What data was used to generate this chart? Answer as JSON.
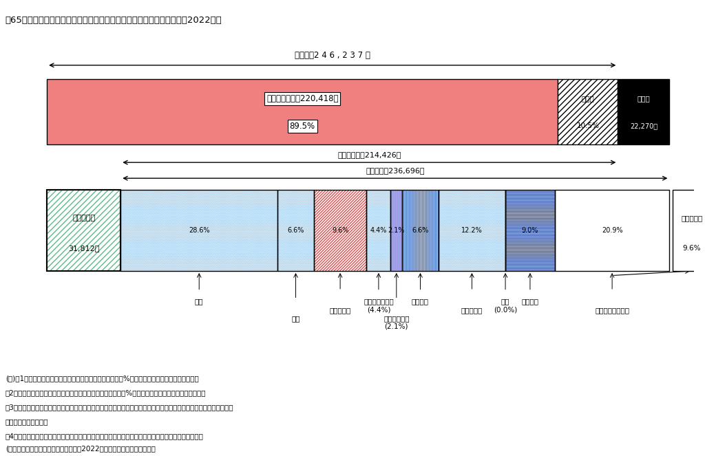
{
  "title": "、65歳以上の夫婦のみの無職世帯（夫婦高齢者無職世帯）の家計収支　2022年」",
  "label_jisshu": "実収入　2 4 6 , 2 3 7 円",
  "label_shakai": "社会保障給付　220,418円",
  "label_shakai_pct": "89.5%",
  "label_sonota": "その他",
  "label_sonota_pct": "10.5%",
  "label_fusoku": "不足分",
  "label_fusoku_val": "22,270円",
  "label_kasho": "可処分所得　214,426円",
  "label_shohi": "消費支出　236,696円",
  "label_hishohi": "非消費支出",
  "label_hishohi_val": "31,812円",
  "label_uchi": "うち交際費",
  "label_uchi_pct": "9.6%",
  "categories": [
    "食料",
    "住居",
    "光熱・水道",
    "家具・家事用品",
    "被服及び履物",
    "保健医療",
    "交通・通信",
    "教育",
    "教養娯楽",
    "その他の消費支出"
  ],
  "cat_labels_sub": [
    "",
    "",
    "",
    "(4.4%)",
    "(2.1%)",
    "",
    "",
    "(0.0%)",
    "",
    ""
  ],
  "category_pcts": [
    28.6,
    6.6,
    9.6,
    4.4,
    2.1,
    6.6,
    12.2,
    0.0,
    9.0,
    20.9
  ],
  "jisshuunyuu": 246237,
  "shakai_hogo": 220418,
  "fusoku": 22270,
  "kashobunshotoku": 214426,
  "shohi_shishutsu": 236696,
  "hi_shohi": 31812,
  "notes": [
    "(注)　1　図中の「社会保障給付」及び「その他」の割合（%）は、実収入に占める割合である。",
    "　2　図中の「食料」から「その他の消費支出」までの割合（%）は、消費支出に占める割合である。",
    "　3　図中の「消費支出」のうち、他の世帯への贈答品やサービスの支出は、「その他の消費支出」の「うち交際費」",
    "　　に含まれている。",
    "　4　図中の「不足分」とは、「実収入」と、「消費支出」及び「非消費支出」の計との差額である。"
  ],
  "source": "(出典：家計調査年報（家計収支編）　2022年（令和４年）結果の概要）",
  "salmon_color": "#F08080",
  "green_hatch_color": "#5DBB8A",
  "background_color": "#ffffff"
}
